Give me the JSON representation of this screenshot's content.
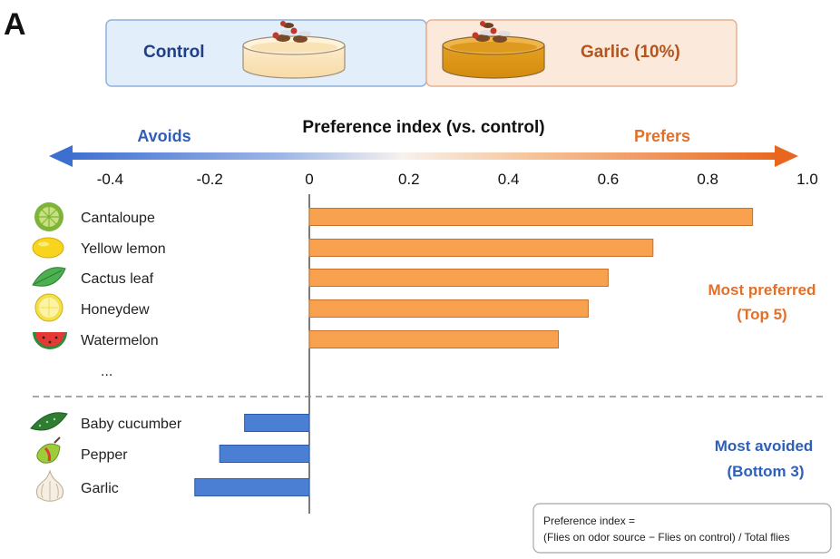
{
  "panel_label": "A",
  "setup": {
    "control_label": "Control",
    "treatment_label": "Garlic (10%)"
  },
  "labels": {
    "avoids": "Avoids",
    "prefers": "Prefers",
    "ellipsis": "...",
    "top_group_line1": "Most preferred",
    "top_group_line2": "(Top 5)",
    "bottom_group_line1": "Most avoided",
    "bottom_group_line2": "(Bottom 3)"
  },
  "formula": {
    "line1": "Preference index =",
    "line2": "(Flies on odor source − Flies on control) / Total flies"
  },
  "colors": {
    "positive_bar": "#F8A24F",
    "negative_bar": "#4A7FD4",
    "prefers_text": "#E0702A",
    "avoids_text": "#2F5FB8",
    "top_group_text": "#E0702A",
    "bottom_group_text": "#2F5FB8"
  },
  "chart_data": {
    "type": "bar",
    "orientation": "horizontal",
    "title": "Preference index (vs. control)",
    "xlim": [
      -0.5,
      1.0
    ],
    "xticks": [
      "-0.4",
      "-0.2",
      "0",
      "0.2",
      "0.4",
      "0.6",
      "0.8",
      "1.0"
    ],
    "xtick_values": [
      -0.4,
      -0.2,
      0,
      0.2,
      0.4,
      0.6,
      0.8,
      1.0
    ],
    "grid": false,
    "categories": [
      "Cantaloupe",
      "Yellow lemon",
      "Cactus leaf",
      "Honeydew",
      "Watermelon",
      "Baby cucumber",
      "Pepper",
      "Garlic"
    ],
    "values": [
      0.89,
      0.69,
      0.6,
      0.56,
      0.5,
      -0.13,
      -0.18,
      -0.23
    ],
    "icons": [
      "lime-icon",
      "lemon-icon",
      "leaf-icon",
      "lemon-slice-icon",
      "watermelon-icon",
      "cucumber-icon",
      "pepper-icon",
      "garlic-icon"
    ]
  }
}
